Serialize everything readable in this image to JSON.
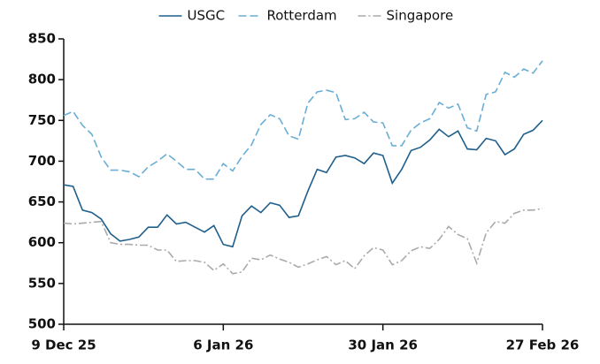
{
  "chart_data": {
    "type": "line",
    "categories": [
      "9 Dec 25",
      null,
      null,
      null,
      null,
      null,
      null,
      null,
      null,
      null,
      null,
      null,
      null,
      null,
      null,
      null,
      null,
      "6 Jan 26",
      null,
      null,
      null,
      null,
      null,
      null,
      null,
      null,
      null,
      null,
      null,
      null,
      null,
      null,
      null,
      null,
      "30 Jan 26",
      null,
      null,
      null,
      null,
      null,
      null,
      null,
      null,
      null,
      null,
      null,
      null,
      null,
      null,
      null,
      null,
      "27 Feb 26"
    ],
    "series": [
      {
        "name": "USGC",
        "color": "#1f5f8b",
        "line_style": "solid",
        "values": [
          671,
          669,
          640,
          637,
          629,
          611,
          602,
          604,
          607,
          619,
          619,
          634,
          623,
          625,
          619,
          613,
          621,
          598,
          595,
          633,
          645,
          637,
          649,
          646,
          631,
          633,
          663,
          690,
          686,
          705,
          707,
          704,
          697,
          710,
          707,
          673,
          690,
          713,
          717,
          726,
          739,
          730,
          737,
          715,
          714,
          728,
          725,
          708,
          715,
          733,
          738,
          750
        ]
      },
      {
        "name": "Rotterdam",
        "color": "#6aaed6",
        "line_style": "dashed",
        "values": [
          756,
          761,
          744,
          733,
          705,
          689,
          689,
          687,
          681,
          693,
          700,
          709,
          700,
          690,
          690,
          678,
          678,
          697,
          688,
          706,
          720,
          745,
          757,
          752,
          731,
          727,
          771,
          785,
          787,
          784,
          751,
          752,
          760,
          748,
          747,
          719,
          719,
          738,
          747,
          752,
          772,
          765,
          770,
          741,
          737,
          782,
          785,
          809,
          803,
          813,
          808,
          823
        ]
      },
      {
        "name": "Singapore",
        "color": "#aaaaaa",
        "line_style": "dashdot",
        "values": [
          624,
          623,
          624,
          625,
          626,
          600,
          598,
          598,
          597,
          597,
          591,
          591,
          577,
          578,
          578,
          576,
          566,
          574,
          562,
          564,
          581,
          579,
          585,
          580,
          576,
          570,
          574,
          579,
          583,
          573,
          578,
          568,
          584,
          594,
          591,
          573,
          578,
          590,
          595,
          593,
          604,
          620,
          610,
          605,
          575,
          612,
          626,
          624,
          636,
          640,
          640,
          642
        ]
      }
    ],
    "ylim": [
      500,
      850
    ],
    "yticks": [
      500,
      550,
      600,
      650,
      700,
      750,
      800,
      850
    ],
    "legend": "top"
  }
}
